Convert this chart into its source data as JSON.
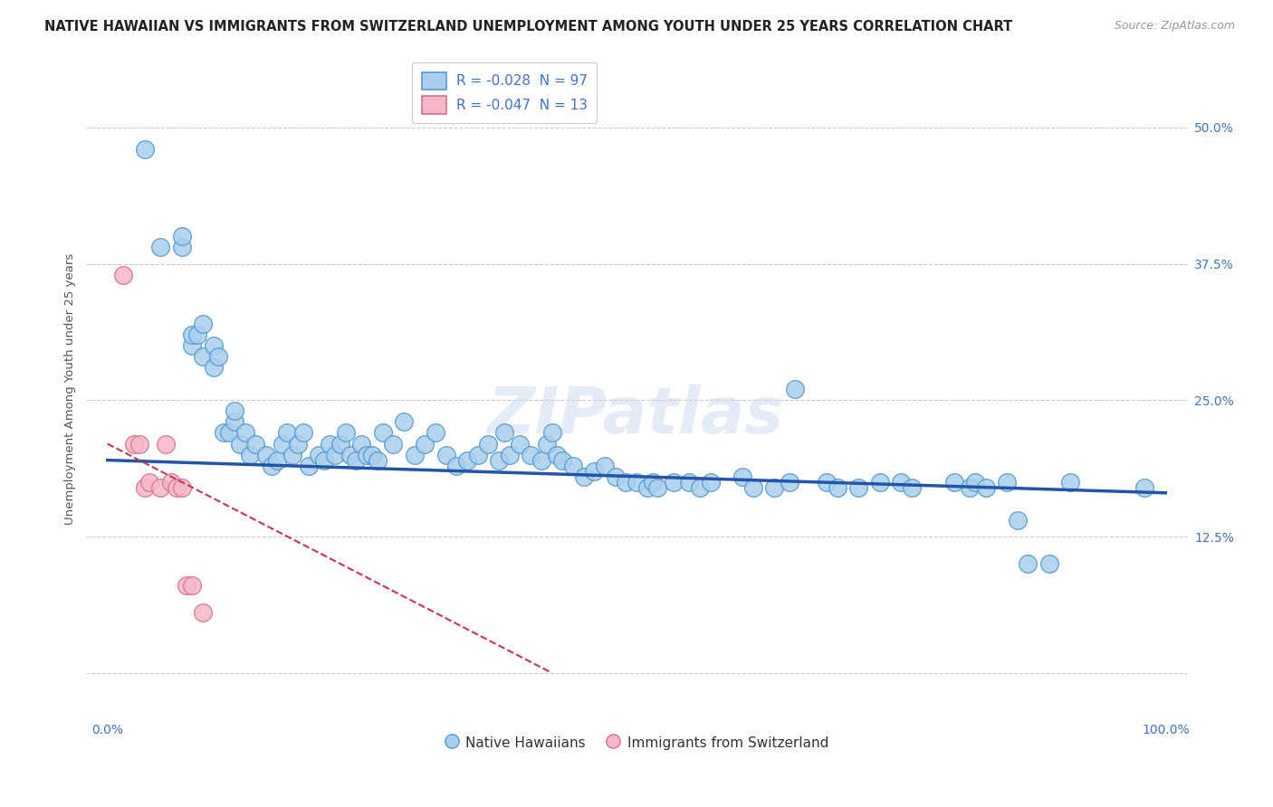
{
  "title": "NATIVE HAWAIIAN VS IMMIGRANTS FROM SWITZERLAND UNEMPLOYMENT AMONG YOUTH UNDER 25 YEARS CORRELATION CHART",
  "source": "Source: ZipAtlas.com",
  "ylabel": "Unemployment Among Youth under 25 years",
  "y_ticks": [
    0.0,
    0.125,
    0.25,
    0.375,
    0.5
  ],
  "y_tick_labels": [
    "",
    "12.5%",
    "25.0%",
    "37.5%",
    "50.0%"
  ],
  "x_range": [
    -0.02,
    1.02
  ],
  "y_range": [
    -0.04,
    0.56
  ],
  "legend_entry1": "R = -0.028  N = 97",
  "legend_entry2": "R = -0.047  N = 13",
  "legend_label1": "Native Hawaiians",
  "legend_label2": "Immigrants from Switzerland",
  "blue_color": "#aacfee",
  "blue_edge": "#5599cc",
  "pink_color": "#f5b8c8",
  "pink_edge": "#d87090",
  "trend_blue": "#2255aa",
  "trend_pink": "#cc3355",
  "blue_scatter_x": [
    0.035,
    0.05,
    0.07,
    0.07,
    0.08,
    0.08,
    0.085,
    0.09,
    0.09,
    0.1,
    0.1,
    0.105,
    0.11,
    0.115,
    0.12,
    0.12,
    0.125,
    0.13,
    0.135,
    0.14,
    0.15,
    0.155,
    0.16,
    0.165,
    0.17,
    0.175,
    0.18,
    0.185,
    0.19,
    0.2,
    0.205,
    0.21,
    0.215,
    0.22,
    0.225,
    0.23,
    0.235,
    0.24,
    0.245,
    0.25,
    0.255,
    0.26,
    0.27,
    0.28,
    0.29,
    0.3,
    0.31,
    0.32,
    0.33,
    0.34,
    0.35,
    0.36,
    0.37,
    0.375,
    0.38,
    0.39,
    0.4,
    0.41,
    0.415,
    0.42,
    0.425,
    0.43,
    0.44,
    0.45,
    0.46,
    0.47,
    0.48,
    0.49,
    0.5,
    0.51,
    0.515,
    0.52,
    0.535,
    0.55,
    0.56,
    0.57,
    0.6,
    0.61,
    0.63,
    0.645,
    0.65,
    0.68,
    0.69,
    0.71,
    0.73,
    0.75,
    0.76,
    0.8,
    0.815,
    0.82,
    0.83,
    0.85,
    0.86,
    0.87,
    0.89,
    0.91,
    0.98
  ],
  "blue_scatter_y": [
    0.48,
    0.39,
    0.39,
    0.4,
    0.3,
    0.31,
    0.31,
    0.32,
    0.29,
    0.28,
    0.3,
    0.29,
    0.22,
    0.22,
    0.23,
    0.24,
    0.21,
    0.22,
    0.2,
    0.21,
    0.2,
    0.19,
    0.195,
    0.21,
    0.22,
    0.2,
    0.21,
    0.22,
    0.19,
    0.2,
    0.195,
    0.21,
    0.2,
    0.21,
    0.22,
    0.2,
    0.195,
    0.21,
    0.2,
    0.2,
    0.195,
    0.22,
    0.21,
    0.23,
    0.2,
    0.21,
    0.22,
    0.2,
    0.19,
    0.195,
    0.2,
    0.21,
    0.195,
    0.22,
    0.2,
    0.21,
    0.2,
    0.195,
    0.21,
    0.22,
    0.2,
    0.195,
    0.19,
    0.18,
    0.185,
    0.19,
    0.18,
    0.175,
    0.175,
    0.17,
    0.175,
    0.17,
    0.175,
    0.175,
    0.17,
    0.175,
    0.18,
    0.17,
    0.17,
    0.175,
    0.26,
    0.175,
    0.17,
    0.17,
    0.175,
    0.175,
    0.17,
    0.175,
    0.17,
    0.175,
    0.17,
    0.175,
    0.14,
    0.1,
    0.1,
    0.175,
    0.17
  ],
  "pink_scatter_x": [
    0.015,
    0.025,
    0.03,
    0.035,
    0.04,
    0.05,
    0.055,
    0.06,
    0.065,
    0.07,
    0.075,
    0.08,
    0.09
  ],
  "pink_scatter_y": [
    0.365,
    0.21,
    0.21,
    0.17,
    0.175,
    0.17,
    0.21,
    0.175,
    0.17,
    0.17,
    0.08,
    0.08,
    0.055
  ],
  "blue_trend_x": [
    0.0,
    1.0
  ],
  "blue_trend_y": [
    0.195,
    0.165
  ],
  "pink_trend_x": [
    0.0,
    0.42
  ],
  "pink_trend_y": [
    0.21,
    0.0
  ],
  "watermark": "ZIPatlas",
  "title_fontsize": 10.5,
  "label_fontsize": 9.5,
  "tick_fontsize": 10
}
